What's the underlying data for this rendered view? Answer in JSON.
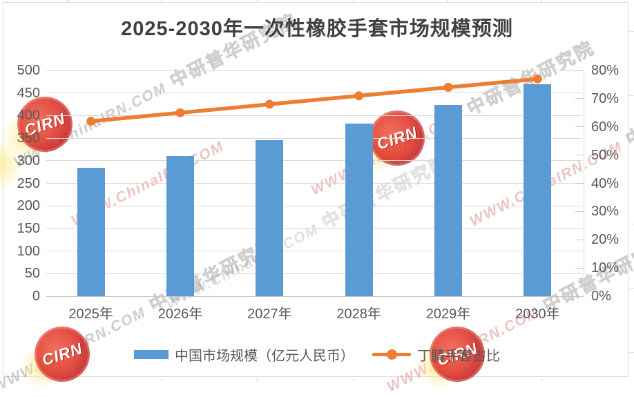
{
  "title": "2025-2030年一次性橡胶手套市场规模预测",
  "chart_data": {
    "type": "combo",
    "title": "2025-2030年一次性橡胶手套市场规模预测",
    "categories": [
      "2025年",
      "2026年",
      "2027年",
      "2028年",
      "2029年",
      "2030年"
    ],
    "series": [
      {
        "name": "中国市场规模（亿元人民币）",
        "type": "bar",
        "axis": "left",
        "color": "#5B9BD5",
        "values": [
          285,
          310,
          345,
          383,
          423,
          470
        ]
      },
      {
        "name": "丁腈手套占比",
        "type": "line",
        "axis": "right",
        "color": "#ED7D31",
        "unit": "%",
        "values": [
          62,
          65,
          68,
          71,
          74,
          77
        ]
      }
    ],
    "left_axis": {
      "min": 0,
      "max": 500,
      "step": 50,
      "tick_labels": [
        "0",
        "50",
        "100",
        "150",
        "200",
        "250",
        "300",
        "350",
        "400",
        "450",
        "500"
      ]
    },
    "right_axis": {
      "min": 0,
      "max": 80,
      "step": 10,
      "tick_labels": [
        "0%",
        "10%",
        "20%",
        "30%",
        "40%",
        "50%",
        "60%",
        "70%",
        "80%"
      ]
    },
    "grid": true,
    "gridline_color": "#D9D9D9",
    "legend_position": "bottom"
  },
  "legend": {
    "items": [
      {
        "label": "中国市场规模（亿元人民币）",
        "marker": "bar-swatch",
        "color": "#5B9BD5"
      },
      {
        "label": "丁腈手套占比",
        "marker": "line-dot",
        "color": "#ED7D31"
      }
    ]
  },
  "watermarks": {
    "badge_label": "CIRN",
    "site_text": "WWW.ChinaIRN.COM",
    "org_text": "中研普华研究院"
  }
}
